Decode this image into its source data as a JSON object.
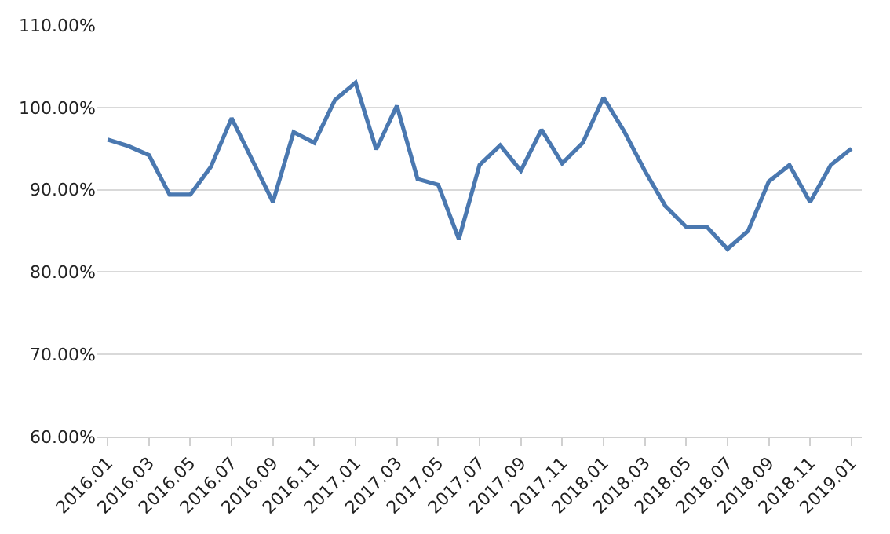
{
  "chart_data": {
    "type": "line",
    "categories": [
      "2016.01",
      null,
      "2016.03",
      null,
      "2016.05",
      null,
      "2016.07",
      null,
      "2016.09",
      null,
      "2016.11",
      null,
      "2017.01",
      null,
      "2017.03",
      null,
      "2017.05",
      null,
      "2017.07",
      null,
      "2017.09",
      null,
      "2017.11",
      null,
      "2018.01",
      null,
      "2018.03",
      null,
      "2018.05",
      null,
      "2018.07",
      null,
      "2018.09",
      null,
      "2018.11",
      null,
      "2019.01"
    ],
    "series": [
      {
        "color": "#4a78b0",
        "values": [
          96.1,
          95.3,
          94.2,
          89.4,
          89.4,
          92.8,
          98.7,
          93.6,
          88.5,
          97.0,
          95.7,
          100.9,
          103.0,
          94.9,
          100.2,
          91.3,
          90.6,
          84.0,
          93.0,
          95.4,
          92.3,
          97.3,
          93.2,
          95.7,
          101.2,
          97.1,
          92.3,
          88.0,
          85.5,
          85.5,
          82.8,
          85.0,
          91.0,
          93.0,
          88.5,
          93.0,
          95.0
        ]
      }
    ],
    "ylim": [
      60,
      110
    ],
    "yticks": [
      {
        "value": 60,
        "label": "60.00%"
      },
      {
        "value": 70,
        "label": "70.00%"
      },
      {
        "value": 80,
        "label": "80.00%"
      },
      {
        "value": 90,
        "label": "90.00%"
      },
      {
        "value": 100,
        "label": "100.00%"
      },
      {
        "value": 110,
        "label": "110.00%"
      }
    ],
    "grid": "y",
    "marker": "none",
    "line_style": "solid"
  }
}
